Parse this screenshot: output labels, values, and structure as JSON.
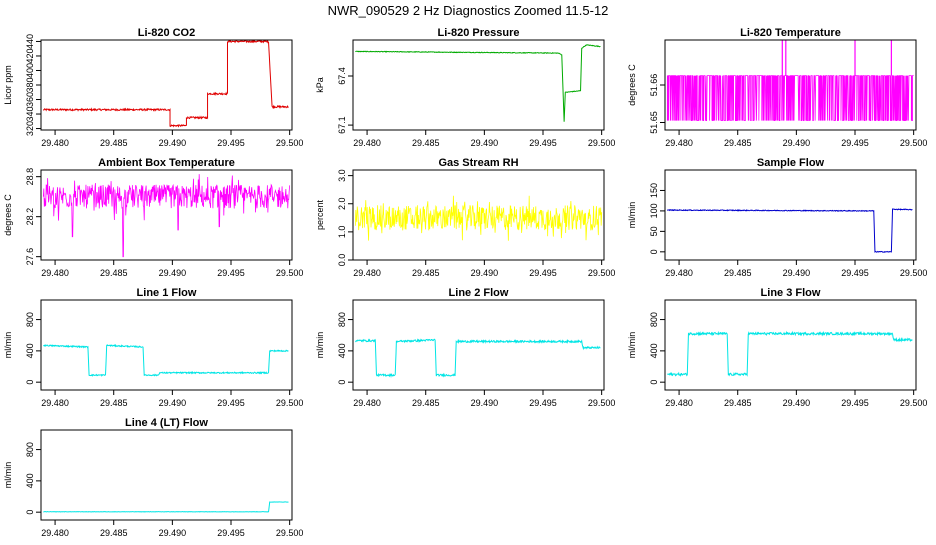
{
  "title": "NWR_090529  2 Hz Diagnostics Zoomed 11.5-12",
  "x_ticks": [
    "29.480",
    "29.485",
    "29.490",
    "29.495",
    "29.500"
  ],
  "colors": {
    "red": "#e00000",
    "green": "#00aa00",
    "magenta": "#ff00ff",
    "yellow": "#ffff00",
    "blue": "#0000cc",
    "cyan": "#00e5e5"
  },
  "chart_data": [
    {
      "type": "line",
      "title": "Li-820 CO2",
      "ylabel": "Licor ppm",
      "xlim": [
        29.4788,
        29.5002
      ],
      "ylim": [
        318,
        442
      ],
      "yticks": [
        "320",
        "340",
        "360",
        "380",
        "400",
        "420",
        "440"
      ],
      "color": "#e00000",
      "noise": 1.2,
      "x": [
        29.479,
        29.4898,
        29.4898,
        29.4912,
        29.4912,
        29.493,
        29.493,
        29.4947,
        29.4947,
        29.4982,
        29.4985,
        29.4999
      ],
      "y": [
        346,
        346,
        324,
        324,
        335,
        335,
        368,
        368,
        440,
        440,
        350,
        350
      ]
    },
    {
      "type": "line",
      "title": "Li-820 Pressure",
      "ylabel": "kPa",
      "xlim": [
        29.4788,
        29.5002
      ],
      "ylim": [
        67.07,
        67.62
      ],
      "yticks": [
        "67.1",
        "67.4"
      ],
      "color": "#00aa00",
      "noise": 0.002,
      "x": [
        29.479,
        29.4963,
        29.4966,
        29.4968,
        29.4969,
        29.4982,
        29.4983,
        29.4987,
        29.4999
      ],
      "y": [
        67.55,
        67.54,
        67.53,
        67.12,
        67.3,
        67.31,
        67.57,
        67.59,
        67.58
      ],
      "ytick_positions": [
        67.1,
        67.4
      ]
    },
    {
      "type": "line",
      "title": "Li-820 Temperature",
      "ylabel": "degrees C",
      "xlim": [
        29.4788,
        29.5002
      ],
      "ylim": [
        51.648,
        51.672
      ],
      "yticks": [
        "51.65",
        "51.66"
      ],
      "color": "#ff00ff",
      "style": "binary",
      "low": 51.6505,
      "high": 51.6625,
      "spikes": [
        29.4888,
        29.4891,
        29.495,
        29.4981
      ],
      "spike_top": 51.672,
      "ytick_positions": [
        51.65,
        51.66
      ]
    },
    {
      "type": "line",
      "title": "Ambient Box Temperature",
      "ylabel": "degrees C",
      "xlim": [
        29.4788,
        29.5002
      ],
      "ylim": [
        27.55,
        28.9
      ],
      "yticks": [
        "27.6",
        "28.2",
        "28.8"
      ],
      "color": "#ff00ff",
      "style": "noise",
      "mean": 28.5,
      "amplitude": 0.18,
      "dips": [
        [
          29.4815,
          27.9
        ],
        [
          29.4858,
          27.6
        ],
        [
          29.4905,
          28.0
        ],
        [
          29.494,
          28.05
        ]
      ],
      "ytick_positions": [
        27.6,
        28.2,
        28.8
      ]
    },
    {
      "type": "line",
      "title": "Gas Stream RH",
      "ylabel": "percent",
      "xlim": [
        29.4788,
        29.5002
      ],
      "ylim": [
        0,
        3.2
      ],
      "yticks": [
        "0.0",
        "1.0",
        "2.0",
        "3.0"
      ],
      "color": "#ffff00",
      "style": "noise",
      "mean": 1.5,
      "amplitude": 0.45,
      "ytick_positions": [
        0,
        1,
        2,
        3
      ]
    },
    {
      "type": "line",
      "title": "Sample Flow",
      "ylabel": "ml/min",
      "xlim": [
        29.4788,
        29.5002
      ],
      "ylim": [
        -20,
        200
      ],
      "yticks": [
        "0",
        "50",
        "100",
        "150"
      ],
      "color": "#0000cc",
      "noise": 1.0,
      "x": [
        29.479,
        29.4966,
        29.4967,
        29.4981,
        29.4982,
        29.4999
      ],
      "y": [
        102,
        100,
        0,
        0,
        104,
        103
      ],
      "ytick_positions": [
        0,
        50,
        100,
        150
      ]
    },
    {
      "type": "line",
      "title": "Line 1 Flow",
      "ylabel": "ml/min",
      "xlim": [
        29.4788,
        29.5002
      ],
      "ylim": [
        -100,
        1050
      ],
      "yticks": [
        "0",
        "400",
        "800"
      ],
      "color": "#00e5e5",
      "noise": 8,
      "x": [
        29.479,
        29.4828,
        29.4829,
        29.4843,
        29.4844,
        29.4875,
        29.4876,
        29.4888,
        29.4889,
        29.4982,
        29.4983,
        29.4999
      ],
      "y": [
        470,
        450,
        90,
        90,
        470,
        450,
        90,
        90,
        120,
        120,
        400,
        400
      ],
      "ytick_positions": [
        0,
        400,
        800
      ]
    },
    {
      "type": "line",
      "title": "Line 2 Flow",
      "ylabel": "ml/min",
      "xlim": [
        29.4788,
        29.5002
      ],
      "ylim": [
        -100,
        1050
      ],
      "yticks": [
        "0",
        "400",
        "800"
      ],
      "color": "#00e5e5",
      "noise": 12,
      "x": [
        29.479,
        29.4807,
        29.4808,
        29.4824,
        29.4825,
        29.4858,
        29.4859,
        29.4875,
        29.4876,
        29.4983,
        29.4984,
        29.4999
      ],
      "y": [
        530,
        530,
        90,
        90,
        520,
        540,
        90,
        90,
        520,
        520,
        440,
        440
      ],
      "ytick_positions": [
        0,
        400,
        800
      ]
    },
    {
      "type": "line",
      "title": "Line 3 Flow",
      "ylabel": "ml/min",
      "xlim": [
        29.4788,
        29.5002
      ],
      "ylim": [
        -100,
        1050
      ],
      "yticks": [
        "0",
        "400",
        "800"
      ],
      "color": "#00e5e5",
      "noise": 15,
      "x": [
        29.479,
        29.4807,
        29.4808,
        29.4841,
        29.4842,
        29.4858,
        29.4859,
        29.4982,
        29.4983,
        29.4999
      ],
      "y": [
        100,
        100,
        620,
        620,
        100,
        100,
        620,
        620,
        540,
        540
      ],
      "ytick_positions": [
        0,
        400,
        800
      ]
    },
    {
      "type": "line",
      "title": "Line 4 (LT) Flow",
      "ylabel": "ml/min",
      "xlim": [
        29.4788,
        29.5002
      ],
      "ylim": [
        -100,
        1050
      ],
      "yticks": [
        "0",
        "400",
        "800"
      ],
      "color": "#00e5e5",
      "noise": 2,
      "x": [
        29.479,
        29.4982,
        29.4983,
        29.4999
      ],
      "y": [
        5,
        5,
        130,
        130
      ],
      "ytick_positions": [
        0,
        400,
        800
      ]
    }
  ]
}
